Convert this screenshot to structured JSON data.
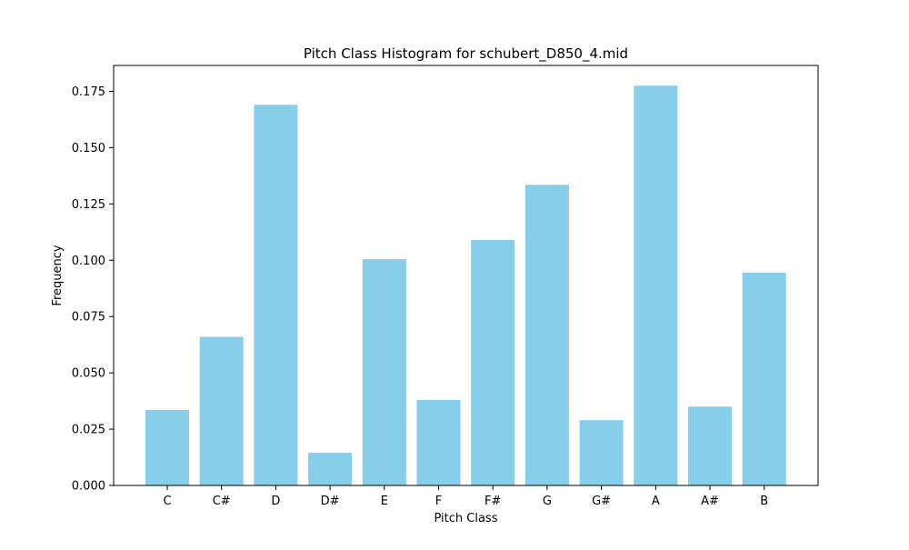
{
  "chart_data": {
    "type": "bar",
    "title": "Pitch Class Histogram for schubert_D850_4.mid",
    "xlabel": "Pitch Class",
    "ylabel": "Frequency",
    "categories": [
      "C",
      "C#",
      "D",
      "D#",
      "E",
      "F",
      "F#",
      "G",
      "G#",
      "A",
      "A#",
      "B"
    ],
    "values": [
      0.0335,
      0.066,
      0.169,
      0.0145,
      0.1005,
      0.038,
      0.109,
      0.1335,
      0.029,
      0.1775,
      0.035,
      0.0945
    ],
    "ylim": [
      0,
      0.1865
    ],
    "yticks": [
      "0.000",
      "0.025",
      "0.050",
      "0.075",
      "0.100",
      "0.125",
      "0.150",
      "0.175"
    ],
    "bar_color": "#87CEEB",
    "grid": false,
    "legend": "none"
  }
}
